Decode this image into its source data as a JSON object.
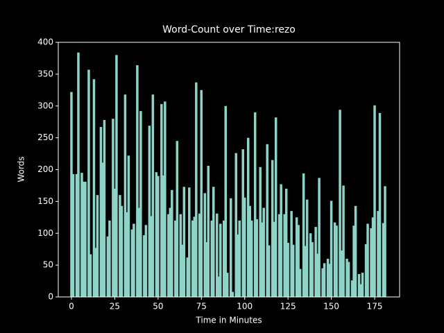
{
  "chart_data": {
    "type": "bar",
    "title": "Word-Count over Time:rezo",
    "xlabel": "Time in Minutes",
    "ylabel": "Words",
    "color": "#8dd3c7",
    "x": [
      0,
      1,
      3,
      4,
      6,
      7,
      8,
      10,
      11,
      13,
      14,
      15,
      17,
      18,
      19,
      21,
      22,
      24,
      25,
      26,
      28,
      29,
      31,
      32,
      33,
      35,
      36,
      38,
      39,
      40,
      42,
      43,
      45,
      46,
      47,
      49,
      50,
      52,
      53,
      54,
      56,
      57,
      58,
      60,
      61,
      63,
      64,
      65,
      67,
      68,
      70,
      71,
      72,
      74,
      75,
      77,
      78,
      79,
      81,
      82,
      84,
      85,
      86,
      88,
      89,
      90,
      92,
      93,
      95,
      96,
      97,
      99,
      100,
      102,
      103,
      104,
      106,
      107,
      109,
      110,
      111,
      113,
      114,
      116,
      117,
      118,
      120,
      121,
      123,
      124,
      125,
      127,
      128,
      130,
      131,
      132,
      134,
      135,
      136,
      138,
      139,
      141,
      142,
      143,
      145,
      146,
      148,
      149,
      150,
      152,
      153,
      155,
      156,
      157,
      159,
      160,
      162,
      163,
      164,
      166,
      167,
      168,
      170,
      171,
      173,
      174,
      175,
      177,
      178,
      180,
      181
    ],
    "values": [
      322,
      193,
      193,
      384,
      195,
      181,
      181,
      357,
      67,
      342,
      77,
      160,
      267,
      211,
      278,
      95,
      120,
      280,
      170,
      380,
      160,
      143,
      318,
      133,
      222,
      106,
      115,
      364,
      140,
      292,
      97,
      113,
      269,
      127,
      318,
      196,
      190,
      303,
      191,
      307,
      130,
      140,
      168,
      120,
      245,
      130,
      82,
      173,
      62,
      172,
      120,
      126,
      337,
      131,
      325,
      163,
      86,
      206,
      120,
      173,
      131,
      32,
      115,
      120,
      300,
      38,
      155,
      8,
      226,
      98,
      120,
      232,
      156,
      250,
      143,
      120,
      290,
      122,
      204,
      117,
      140,
      240,
      81,
      215,
      118,
      282,
      130,
      177,
      130,
      170,
      85,
      135,
      82,
      125,
      113,
      44,
      194,
      80,
      153,
      100,
      86,
      110,
      68,
      187,
      45,
      53,
      60,
      52,
      151,
      117,
      112,
      294,
      73,
      175,
      60,
      55,
      26,
      112,
      143,
      36,
      20,
      38,
      83,
      115,
      108,
      125,
      301,
      135,
      289,
      116,
      174
    ],
    "xlim": [
      -7.6,
      189.4
    ],
    "xticks": [
      0,
      25,
      50,
      75,
      100,
      125,
      150,
      175
    ],
    "ylim": [
      0,
      400
    ],
    "yticks": [
      0,
      50,
      100,
      150,
      200,
      250,
      300,
      350,
      400
    ]
  }
}
